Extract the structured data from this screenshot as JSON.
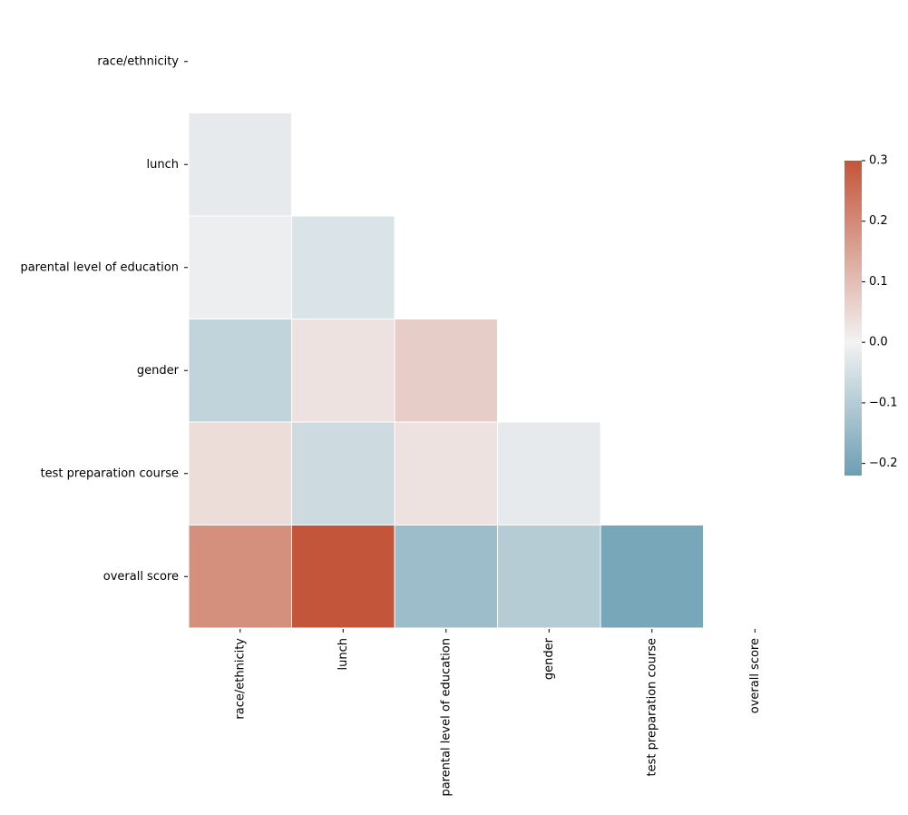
{
  "chart_data": {
    "type": "heatmap",
    "title": "",
    "xlabel": "",
    "ylabel": "",
    "mask": "upper-triangle-including-diagonal",
    "row_labels": [
      "race/ethnicity",
      "lunch",
      "parental level of education",
      "gender",
      "test preparation course",
      "overall score"
    ],
    "col_labels": [
      "race/ethnicity",
      "lunch",
      "parental level of education",
      "gender",
      "test preparation course",
      "overall score"
    ],
    "values": [
      [
        null,
        null,
        null,
        null,
        null,
        null
      ],
      [
        -0.02,
        null,
        null,
        null,
        null,
        null
      ],
      [
        -0.01,
        -0.04,
        null,
        null,
        null,
        null
      ],
      [
        -0.08,
        0.03,
        0.07,
        null,
        null,
        null
      ],
      [
        0.04,
        -0.06,
        0.03,
        -0.02,
        null,
        null
      ],
      [
        0.19,
        0.3,
        -0.14,
        -0.1,
        -0.2,
        null
      ]
    ],
    "colorbar": {
      "vmin": -0.22,
      "vmax": 0.3,
      "ticks": [
        0.3,
        0.2,
        0.1,
        0.0,
        -0.1,
        -0.2
      ],
      "tick_labels": [
        "0.3",
        "0.2",
        "0.1",
        "0.0",
        "−0.1",
        "−0.2"
      ],
      "low_color": "#6c9fb3",
      "mid_color": "#f2f2f2",
      "high_color": "#c3553a"
    },
    "cell_border_color": "#ffffff",
    "grid": false
  }
}
